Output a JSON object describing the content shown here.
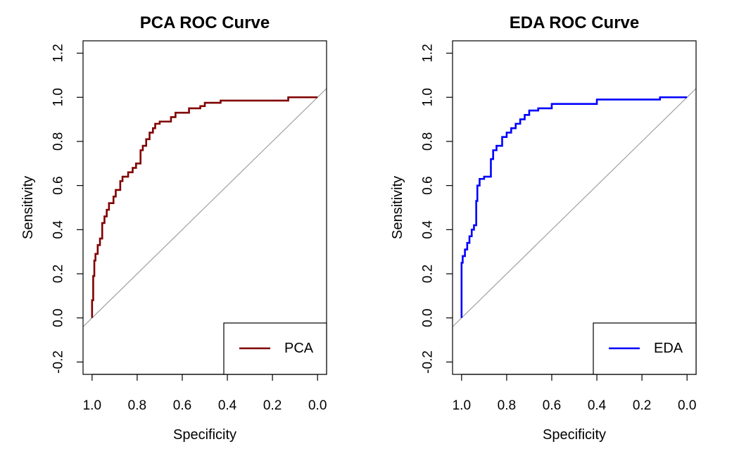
{
  "chart_data": [
    {
      "type": "line",
      "title": "PCA ROC Curve",
      "xlabel": "Specificity",
      "ylabel": "Sensitivity",
      "xlim": [
        1.0,
        0.0
      ],
      "ylim": [
        -0.2,
        1.2
      ],
      "x_reversed": true,
      "xticks": [
        "1.0",
        "0.8",
        "0.6",
        "0.4",
        "0.2",
        "0.0"
      ],
      "yticks": [
        "-0.2",
        "0.0",
        "0.2",
        "0.4",
        "0.6",
        "0.8",
        "1.0",
        "1.2"
      ],
      "grid": false,
      "legend_position": "bottom-right",
      "diagonal_color": "#a0a0a0",
      "series": [
        {
          "name": "PCA",
          "color": "#800000",
          "specificity": [
            1.0,
            1.0,
            0.995,
            0.995,
            0.99,
            0.99,
            0.985,
            0.985,
            0.975,
            0.975,
            0.965,
            0.965,
            0.955,
            0.955,
            0.945,
            0.945,
            0.935,
            0.935,
            0.925,
            0.925,
            0.905,
            0.905,
            0.895,
            0.895,
            0.875,
            0.875,
            0.865,
            0.865,
            0.84,
            0.84,
            0.82,
            0.82,
            0.805,
            0.805,
            0.785,
            0.785,
            0.775,
            0.775,
            0.76,
            0.76,
            0.745,
            0.745,
            0.73,
            0.73,
            0.72,
            0.72,
            0.7,
            0.7,
            0.65,
            0.65,
            0.63,
            0.63,
            0.57,
            0.57,
            0.52,
            0.52,
            0.5,
            0.5,
            0.43,
            0.43,
            0.13,
            0.13,
            0.0
          ],
          "sensitivity": [
            0.0,
            0.08,
            0.08,
            0.19,
            0.19,
            0.26,
            0.26,
            0.29,
            0.29,
            0.33,
            0.33,
            0.36,
            0.36,
            0.43,
            0.43,
            0.46,
            0.46,
            0.49,
            0.49,
            0.52,
            0.52,
            0.55,
            0.55,
            0.58,
            0.58,
            0.62,
            0.62,
            0.64,
            0.64,
            0.66,
            0.66,
            0.68,
            0.68,
            0.7,
            0.7,
            0.76,
            0.76,
            0.78,
            0.78,
            0.81,
            0.81,
            0.84,
            0.84,
            0.86,
            0.86,
            0.88,
            0.88,
            0.89,
            0.89,
            0.91,
            0.91,
            0.93,
            0.93,
            0.95,
            0.95,
            0.96,
            0.96,
            0.975,
            0.975,
            0.985,
            0.985,
            1.0,
            1.0
          ]
        }
      ]
    },
    {
      "type": "line",
      "title": "EDA ROC Curve",
      "xlabel": "Specificity",
      "ylabel": "Sensitivity",
      "xlim": [
        1.0,
        0.0
      ],
      "ylim": [
        -0.2,
        1.2
      ],
      "x_reversed": true,
      "xticks": [
        "1.0",
        "0.8",
        "0.6",
        "0.4",
        "0.2",
        "0.0"
      ],
      "yticks": [
        "-0.2",
        "0.0",
        "0.2",
        "0.4",
        "0.6",
        "0.8",
        "1.0",
        "1.2"
      ],
      "grid": false,
      "legend_position": "bottom-right",
      "diagonal_color": "#a0a0a0",
      "series": [
        {
          "name": "EDA",
          "color": "#0000ff",
          "specificity": [
            1.0,
            1.0,
            0.995,
            0.995,
            0.985,
            0.985,
            0.975,
            0.975,
            0.965,
            0.965,
            0.955,
            0.955,
            0.945,
            0.945,
            0.935,
            0.935,
            0.93,
            0.93,
            0.92,
            0.92,
            0.9,
            0.9,
            0.87,
            0.87,
            0.86,
            0.86,
            0.845,
            0.845,
            0.82,
            0.82,
            0.8,
            0.8,
            0.78,
            0.78,
            0.76,
            0.76,
            0.74,
            0.74,
            0.72,
            0.72,
            0.7,
            0.7,
            0.66,
            0.66,
            0.6,
            0.6,
            0.4,
            0.4,
            0.12,
            0.12,
            0.0
          ],
          "sensitivity": [
            0.0,
            0.25,
            0.25,
            0.28,
            0.28,
            0.31,
            0.31,
            0.34,
            0.34,
            0.37,
            0.37,
            0.4,
            0.4,
            0.42,
            0.42,
            0.53,
            0.53,
            0.6,
            0.6,
            0.63,
            0.63,
            0.64,
            0.64,
            0.72,
            0.72,
            0.76,
            0.76,
            0.78,
            0.78,
            0.82,
            0.82,
            0.84,
            0.84,
            0.86,
            0.86,
            0.88,
            0.88,
            0.9,
            0.9,
            0.92,
            0.92,
            0.94,
            0.94,
            0.95,
            0.95,
            0.97,
            0.97,
            0.99,
            0.99,
            1.0,
            1.0
          ]
        }
      ]
    }
  ]
}
